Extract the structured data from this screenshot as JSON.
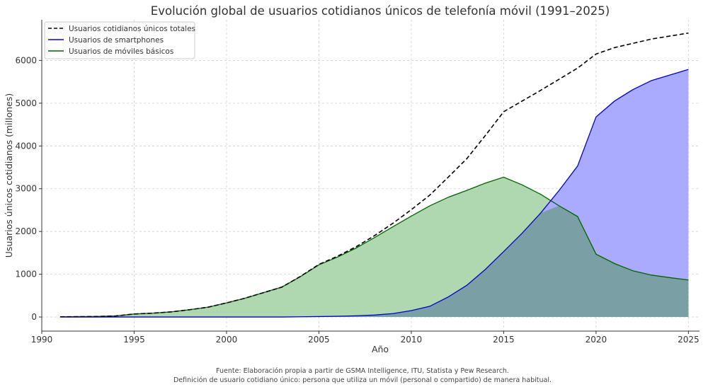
{
  "chart_data": {
    "type": "area",
    "title": "Evolución global de usuarios cotidianos únicos de telefonía móvil (1991–2025)",
    "xlabel": "Año",
    "ylabel": "Usuarios únicos cotidianos (millones)",
    "xlim": [
      1990,
      2025.6
    ],
    "ylim": [
      -330,
      6950
    ],
    "xticks": [
      1990,
      1995,
      2000,
      2005,
      2010,
      2015,
      2020,
      2025
    ],
    "yticks": [
      0,
      1000,
      2000,
      3000,
      4000,
      5000,
      6000
    ],
    "grid": true,
    "legend_position": "top-left",
    "x": [
      1991,
      1992,
      1993,
      1994,
      1995,
      1996,
      1997,
      1998,
      1999,
      2000,
      2001,
      2002,
      2003,
      2004,
      2005,
      2006,
      2007,
      2008,
      2009,
      2010,
      2011,
      2012,
      2013,
      2014,
      2015,
      2016,
      2017,
      2018,
      2019,
      2020,
      2021,
      2022,
      2023,
      2024,
      2025
    ],
    "series": [
      {
        "name": "Usuarios cotidianos únicos totales",
        "style": "dashed-line",
        "color": "#000000",
        "values": [
          5,
          8,
          12,
          25,
          70,
          90,
          120,
          170,
          230,
          330,
          440,
          570,
          700,
          950,
          1230,
          1420,
          1640,
          1900,
          2190,
          2510,
          2850,
          3270,
          3700,
          4240,
          4800,
          5050,
          5300,
          5560,
          5820,
          6150,
          6300,
          6400,
          6500,
          6570,
          6640
        ]
      },
      {
        "name": "Usuarios de smartphones",
        "style": "area",
        "color": "#0000cc",
        "fill": "#aaaaff",
        "values": [
          0,
          0,
          0,
          0,
          0,
          0,
          0,
          0,
          0,
          0,
          0,
          0,
          0,
          5,
          10,
          18,
          28,
          45,
          80,
          150,
          250,
          470,
          740,
          1110,
          1530,
          1960,
          2430,
          2960,
          3530,
          4680,
          5050,
          5320,
          5530,
          5660,
          5790
        ]
      },
      {
        "name": "Usuarios de móviles básicos",
        "style": "area",
        "color": "#006400",
        "fill": "#b0d8b0",
        "values": [
          5,
          8,
          12,
          25,
          70,
          90,
          120,
          170,
          230,
          330,
          440,
          570,
          700,
          945,
          1220,
          1400,
          1610,
          1855,
          2110,
          2360,
          2600,
          2800,
          2960,
          3130,
          3270,
          3090,
          2870,
          2600,
          2350,
          1470,
          1250,
          1080,
          980,
          920,
          865
        ]
      }
    ],
    "overlap_fill": "#7aa0a6",
    "footnote_lines": [
      "Fuente: Elaboración propia a partir de GSMA Intelligence, ITU, Statista y Pew Research.",
      "Definición de usuario cotidiano único: persona que utiliza un móvil (personal o compartido) de manera habitual."
    ]
  }
}
